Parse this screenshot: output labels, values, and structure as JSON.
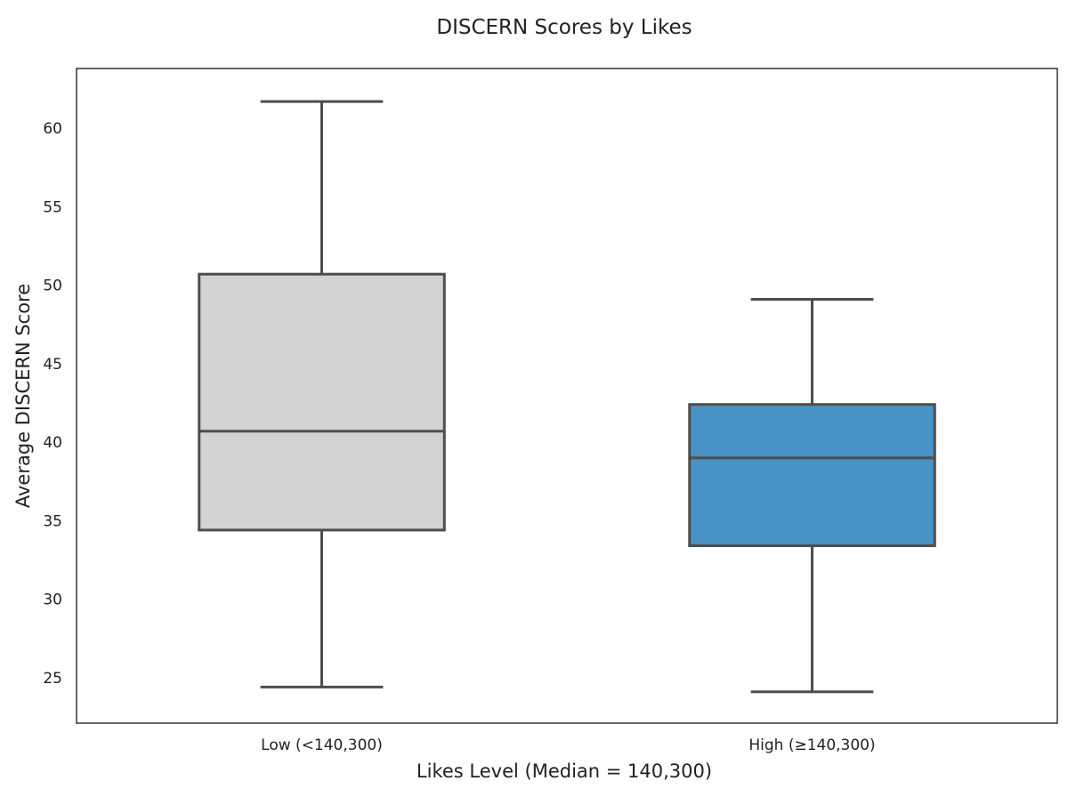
{
  "chart_data": {
    "type": "box",
    "title": "DISCERN Scores by Likes",
    "xlabel": "Likes Level (Median = 140,300)",
    "ylabel": "Average DISCERN Score",
    "ylim": [
      22.1,
      63.8
    ],
    "yticks": [
      25,
      30,
      35,
      40,
      45,
      50,
      55,
      60
    ],
    "grid": false,
    "categories": [
      "Low (<140,300)",
      "High (≥140,300)"
    ],
    "boxes": [
      {
        "category": "Low (<140,300)",
        "whisker_low": 24.4,
        "q1": 34.4,
        "median": 40.7,
        "q3": 50.7,
        "whisker_high": 61.7,
        "color": "#d3d3d3"
      },
      {
        "category": "High (≥140,300)",
        "whisker_low": 24.1,
        "q1": 33.4,
        "median": 39.0,
        "q3": 42.4,
        "whisker_high": 49.1,
        "color": "#4892c6"
      }
    ]
  }
}
